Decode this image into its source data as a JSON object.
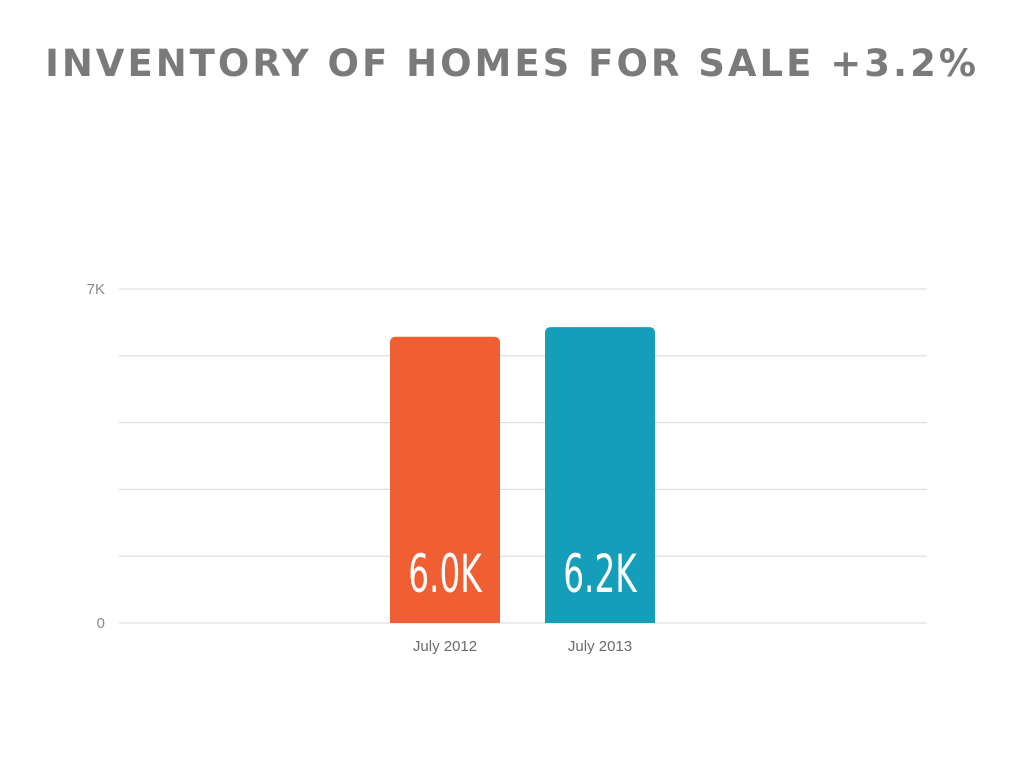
{
  "title": "INVENTORY OF HOMES FOR SALE +3.2%",
  "chart_data": {
    "type": "bar",
    "categories": [
      "July 2012",
      "July 2013"
    ],
    "values": [
      6.0,
      6.2
    ],
    "data_labels": [
      "6.0K",
      "6.2K"
    ],
    "ylim": [
      0,
      7
    ],
    "y_ticks_labeled": [
      {
        "value": 0,
        "label": "0"
      },
      {
        "value": 7,
        "label": "7K"
      }
    ],
    "gridlines": 5,
    "grid": true,
    "legend": "none",
    "colors": [
      "#ef5f33",
      "#159eb9"
    ]
  },
  "colors": {
    "gridline": "#d8d8d8",
    "title": "#7a7a7a"
  }
}
